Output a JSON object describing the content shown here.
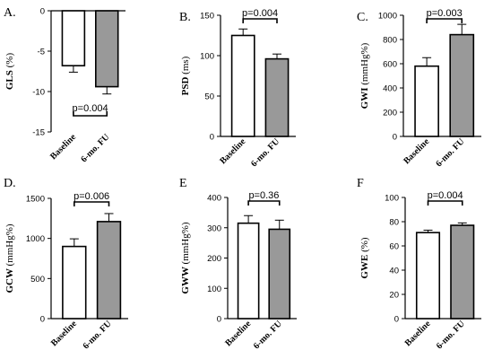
{
  "chart_data": [
    {
      "type": "bar",
      "panel_letter": "A.",
      "categories": [
        "Baseline",
        "6-mo. FU"
      ],
      "values": [
        -6.8,
        -9.4
      ],
      "errors": [
        0.8,
        0.9
      ],
      "ylabel_main": "GLS",
      "ylabel_unit": "(%)",
      "ylim": [
        -15,
        0
      ],
      "yticks": [
        0,
        -5,
        -10,
        -15
      ],
      "tick_labels": [
        "0",
        "-5",
        "-10",
        "-15"
      ],
      "p_value": "p=0.004",
      "p_position": "bottom",
      "bar_colors": [
        "#ffffff",
        "#999999"
      ]
    },
    {
      "type": "bar",
      "panel_letter": "B.",
      "categories": [
        "Baseline",
        "6-mo. FU"
      ],
      "values": [
        125,
        96
      ],
      "errors": [
        8,
        6
      ],
      "ylabel_main": "PSD",
      "ylabel_unit": "(ms)",
      "ylim": [
        0,
        150
      ],
      "yticks": [
        0,
        50,
        100,
        150
      ],
      "tick_labels": [
        "0",
        "50",
        "100",
        "150"
      ],
      "p_value": "p=0.004",
      "p_position": "top",
      "bar_colors": [
        "#ffffff",
        "#999999"
      ]
    },
    {
      "type": "bar",
      "panel_letter": "C.",
      "categories": [
        "Baseline",
        "6-mo. FU"
      ],
      "values": [
        580,
        840
      ],
      "errors": [
        70,
        85
      ],
      "ylabel_main": "GWI",
      "ylabel_unit": "(mmHg%)",
      "ylim": [
        0,
        1000
      ],
      "yticks": [
        0,
        200,
        400,
        600,
        800,
        1000
      ],
      "tick_labels": [
        "0",
        "200",
        "400",
        "600",
        "800",
        "1000"
      ],
      "p_value": "p=0.003",
      "p_position": "top",
      "bar_colors": [
        "#ffffff",
        "#999999"
      ]
    },
    {
      "type": "bar",
      "panel_letter": "D.",
      "categories": [
        "Baseline",
        "6-mo. FU"
      ],
      "values": [
        900,
        1210
      ],
      "errors": [
        95,
        100
      ],
      "ylabel_main": "GCW",
      "ylabel_unit": "(mmHg%)",
      "ylim": [
        0,
        1500
      ],
      "yticks": [
        0,
        500,
        1000,
        1500
      ],
      "tick_labels": [
        "0",
        "500",
        "1000",
        "1500"
      ],
      "p_value": "p=0.006",
      "p_position": "top",
      "bar_colors": [
        "#ffffff",
        "#999999"
      ]
    },
    {
      "type": "bar",
      "panel_letter": "E",
      "categories": [
        "Baseline",
        "6-mo. FU"
      ],
      "values": [
        315,
        295
      ],
      "errors": [
        25,
        30
      ],
      "ylabel_main": "GWW",
      "ylabel_unit": "(mmHg%)",
      "ylim": [
        0,
        400
      ],
      "yticks": [
        0,
        100,
        200,
        300,
        400
      ],
      "tick_labels": [
        "0",
        "100",
        "200",
        "300",
        "400"
      ],
      "p_value": "p=0.36",
      "p_position": "top",
      "bar_colors": [
        "#ffffff",
        "#999999"
      ]
    },
    {
      "type": "bar",
      "panel_letter": "F",
      "categories": [
        "Baseline",
        "6-mo. FU"
      ],
      "values": [
        71,
        77
      ],
      "errors": [
        2,
        2
      ],
      "ylabel_main": "GWE",
      "ylabel_unit": "(%)",
      "ylim": [
        0,
        100
      ],
      "yticks": [
        0,
        20,
        40,
        60,
        80,
        100
      ],
      "tick_labels": [
        "0",
        "20",
        "40",
        "60",
        "80",
        "100"
      ],
      "p_value": "p=0.004",
      "p_position": "top",
      "bar_colors": [
        "#ffffff",
        "#999999"
      ]
    }
  ]
}
